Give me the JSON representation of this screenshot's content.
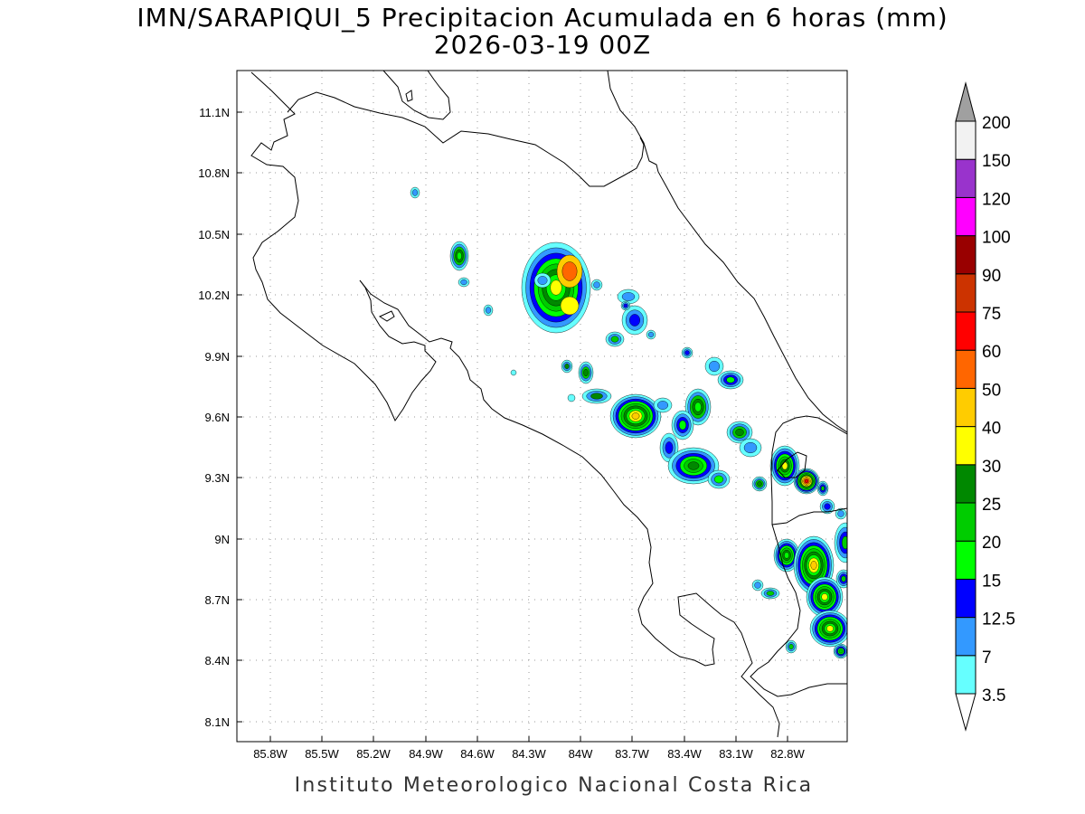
{
  "header": {
    "title": "IMN/SARAPIQUI_5 Precipitacion Acumulada en 6 horas (mm)",
    "subtitle": "2026-03-19 00Z"
  },
  "footer": {
    "text": "Instituto Meteorologico Nacional Costa Rica"
  },
  "axes": {
    "lat_ticks": [
      "11.1N",
      "10.8N",
      "10.5N",
      "10.2N",
      "9.9N",
      "9.6N",
      "9.3N",
      "9N",
      "8.7N",
      "8.4N",
      "8.1N"
    ],
    "lon_ticks": [
      "85.8W",
      "85.5W",
      "85.2W",
      "84.9W",
      "84.6W",
      "84.3W",
      "84W",
      "83.7W",
      "83.4W",
      "83.1W",
      "82.8W"
    ]
  },
  "colorbar": {
    "labels": [
      "3.5",
      "7",
      "12.5",
      "15",
      "20",
      "25",
      "30",
      "40",
      "50",
      "60",
      "75",
      "90",
      "100",
      "120",
      "150",
      "200"
    ],
    "colors": [
      "#ffffff",
      "#66ffff",
      "#3399ff",
      "#0000ff",
      "#00ff00",
      "#00cc00",
      "#008800",
      "#ffff00",
      "#ffcc00",
      "#ff6600",
      "#ff0000",
      "#cc3300",
      "#990000",
      "#ff00ff",
      "#9933cc",
      "#f2f2f2",
      "#a0a0a0"
    ]
  }
}
